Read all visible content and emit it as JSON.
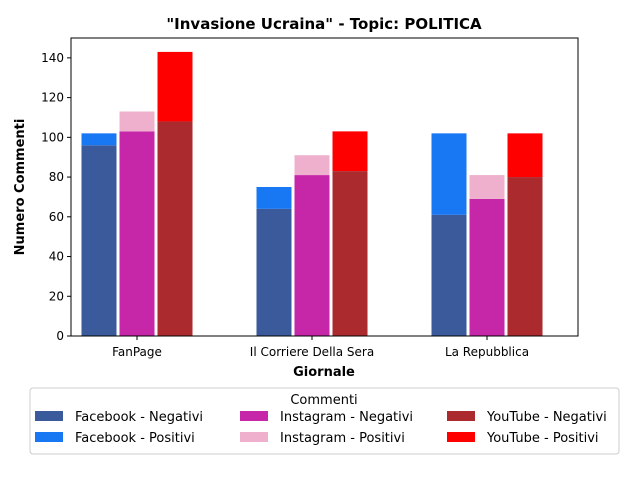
{
  "chart_data": {
    "type": "bar",
    "title": "\"Invasione Ucraina\" - Topic: POLITICA",
    "xlabel": "Giornale",
    "ylabel": "Numero Commenti",
    "categories": [
      "FanPage",
      "Il Corriere Della Sera",
      "La Repubblica"
    ],
    "ylim": [
      0,
      150
    ],
    "yticks": [
      0,
      20,
      40,
      60,
      80,
      100,
      120,
      140
    ],
    "stacked_pairs": true,
    "series": [
      {
        "name": "Facebook - Negativi",
        "platform": "Facebook",
        "values": [
          96,
          64,
          61
        ],
        "color": "#3a5a9c"
      },
      {
        "name": "Facebook - Positivi",
        "platform": "Facebook",
        "values": [
          6,
          11,
          41
        ],
        "color": "#1877f2"
      },
      {
        "name": "Instagram - Negativi",
        "platform": "Instagram",
        "values": [
          103,
          81,
          69
        ],
        "color": "#c626a8"
      },
      {
        "name": "Instagram - Positivi",
        "platform": "Instagram",
        "values": [
          10,
          10,
          12
        ],
        "color": "#eeb0cc"
      },
      {
        "name": "YouTube - Negativi",
        "platform": "YouTube",
        "values": [
          108,
          83,
          80
        ],
        "color": "#aa2a2e"
      },
      {
        "name": "YouTube - Positivi",
        "platform": "YouTube",
        "values": [
          35,
          20,
          22
        ],
        "color": "#ff0000"
      }
    ],
    "legend": {
      "title": "Commenti",
      "placement": "bottom",
      "columns": 3
    },
    "grid": false
  }
}
